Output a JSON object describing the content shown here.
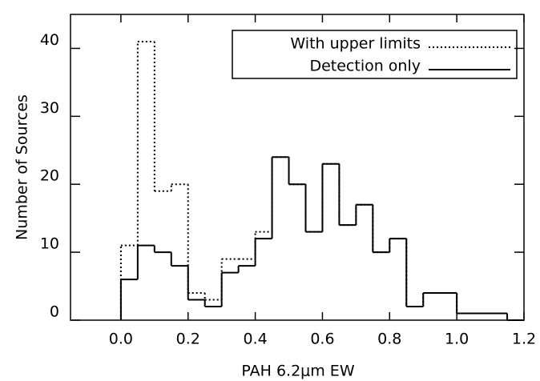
{
  "chart_data": {
    "type": "histogram",
    "xlabel": "PAH 6.2μm EW",
    "ylabel": "Number of Sources",
    "bins": [
      0,
      0.05,
      0.1,
      0.15,
      0.2,
      0.25,
      0.3,
      0.35,
      0.4,
      0.45,
      0.5,
      0.55,
      0.6,
      0.65,
      0.7,
      0.75,
      0.8,
      0.85,
      0.9,
      0.95,
      1.0,
      1.05,
      1.1,
      1.15,
      1.2
    ],
    "series": [
      {
        "name": "With upper limits",
        "color": "#000000",
        "style": "dotted",
        "values": [
          11,
          41,
          19,
          20,
          4,
          3,
          9,
          9,
          13,
          24,
          20,
          13,
          23,
          14,
          17,
          10,
          12,
          2,
          4,
          4,
          1,
          1,
          1,
          0
        ]
      },
      {
        "name": "Detection only",
        "color": "#000000",
        "style": "solid",
        "values": [
          6,
          11,
          10,
          8,
          3,
          2,
          7,
          8,
          12,
          24,
          20,
          13,
          23,
          14,
          17,
          10,
          12,
          2,
          4,
          4,
          1,
          1,
          1,
          0
        ]
      }
    ],
    "xlim": [
      -0.15,
      1.2
    ],
    "ylim": [
      0,
      45
    ],
    "xticks": [
      {
        "value": 0,
        "label": "0.0"
      },
      0.2,
      0.4,
      0.6,
      0.8,
      {
        "value": 1,
        "label": "1.0"
      },
      1.2
    ],
    "yticks": [
      0,
      10,
      20,
      30,
      40
    ],
    "legend": "top-right"
  }
}
